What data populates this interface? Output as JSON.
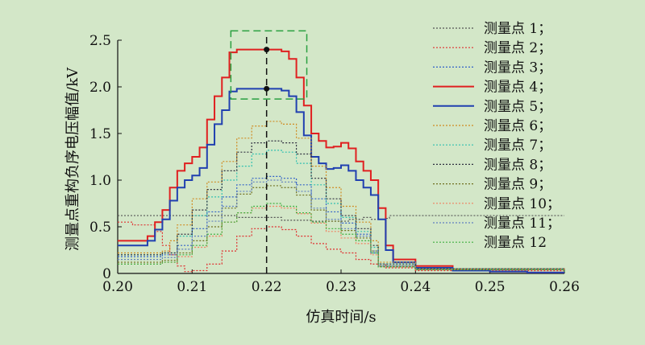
{
  "chart_data": {
    "type": "line",
    "xlabel": "仿真时间/s",
    "ylabel": "测量点重构负序电压幅值/kV",
    "xlim": [
      0.2,
      0.26
    ],
    "ylim": [
      0,
      2.5
    ],
    "xticks": [
      "0.20",
      "0.21",
      "0.22",
      "0.23",
      "0.24",
      "0.25",
      "0.26"
    ],
    "yticks": [
      "0",
      "0.5",
      "1.0",
      "1.5",
      "2.0",
      "2.5"
    ],
    "grid": false,
    "legend_position": "right",
    "marker_x": 0.22,
    "markers": [
      {
        "x": 0.22,
        "y": 2.4
      },
      {
        "x": 0.22,
        "y": 1.98
      }
    ],
    "highlight_box": {
      "x": [
        0.2152,
        0.2254
      ],
      "y": [
        1.87,
        2.6
      ]
    },
    "series": [
      {
        "name": "测量点 1；",
        "color": "#555555",
        "dash": "dot",
        "x": [
          0.2,
          0.206,
          0.216,
          0.222,
          0.226,
          0.229,
          0.231,
          0.233,
          0.234,
          0.236,
          0.2365,
          0.26
        ],
        "y": [
          0.62,
          0.62,
          0.6,
          0.57,
          0.56,
          0.56,
          0.58,
          0.6,
          0.58,
          0.59,
          0.62,
          0.62
        ]
      },
      {
        "name": "测量点 2；",
        "color": "#e03030",
        "dash": "dot",
        "x": [
          0.2,
          0.202,
          0.205,
          0.206,
          0.207,
          0.208,
          0.209,
          0.21,
          0.212,
          0.214,
          0.216,
          0.218,
          0.22,
          0.222,
          0.224,
          0.226,
          0.228,
          0.23,
          0.232,
          0.234,
          0.236,
          0.24,
          0.26
        ],
        "y": [
          0.55,
          0.52,
          0.45,
          0.3,
          0.2,
          0.08,
          0.02,
          0.03,
          0.1,
          0.24,
          0.4,
          0.48,
          0.5,
          0.47,
          0.4,
          0.32,
          0.26,
          0.22,
          0.15,
          0.1,
          0.06,
          0.03,
          0.02
        ]
      },
      {
        "name": "测量点 3；",
        "color": "#3060c8",
        "dash": "dot",
        "x": [
          0.2,
          0.206,
          0.208,
          0.21,
          0.212,
          0.214,
          0.216,
          0.218,
          0.22,
          0.222,
          0.224,
          0.226,
          0.228,
          0.23,
          0.232,
          0.234,
          0.235,
          0.24,
          0.26
        ],
        "y": [
          0.18,
          0.2,
          0.3,
          0.48,
          0.66,
          0.82,
          0.95,
          1.02,
          1.04,
          1.02,
          0.95,
          0.8,
          0.66,
          0.54,
          0.42,
          0.22,
          0.08,
          0.05,
          0.02
        ]
      },
      {
        "name": "测量点 4；",
        "color": "#e02020",
        "dash": "solid",
        "width": 2,
        "x": [
          0.2,
          0.202,
          0.204,
          0.205,
          0.206,
          0.207,
          0.208,
          0.209,
          0.21,
          0.211,
          0.212,
          0.213,
          0.214,
          0.215,
          0.216,
          0.217,
          0.218,
          0.22,
          0.221,
          0.222,
          0.223,
          0.224,
          0.225,
          0.226,
          0.227,
          0.228,
          0.229,
          0.23,
          0.231,
          0.232,
          0.233,
          0.234,
          0.235,
          0.236,
          0.237,
          0.24,
          0.245,
          0.25,
          0.255,
          0.26
        ],
        "y": [
          0.35,
          0.35,
          0.4,
          0.55,
          0.68,
          0.92,
          1.1,
          1.18,
          1.25,
          1.35,
          1.65,
          1.9,
          2.1,
          2.37,
          2.4,
          2.4,
          2.4,
          2.4,
          2.4,
          2.38,
          2.3,
          2.1,
          1.8,
          1.5,
          1.42,
          1.35,
          1.36,
          1.4,
          1.34,
          1.2,
          1.1,
          1.0,
          0.7,
          0.3,
          0.15,
          0.08,
          0.04,
          0.02,
          0.01,
          0.01
        ]
      },
      {
        "name": "测量点 5；",
        "color": "#2040b0",
        "dash": "solid",
        "width": 2,
        "x": [
          0.2,
          0.202,
          0.204,
          0.205,
          0.206,
          0.207,
          0.208,
          0.209,
          0.21,
          0.211,
          0.212,
          0.213,
          0.214,
          0.215,
          0.216,
          0.217,
          0.218,
          0.22,
          0.221,
          0.222,
          0.223,
          0.224,
          0.225,
          0.226,
          0.227,
          0.228,
          0.229,
          0.23,
          0.231,
          0.232,
          0.233,
          0.234,
          0.235,
          0.236,
          0.237,
          0.24,
          0.245,
          0.25,
          0.255,
          0.26
        ],
        "y": [
          0.3,
          0.3,
          0.35,
          0.47,
          0.58,
          0.78,
          0.92,
          1.0,
          1.05,
          1.13,
          1.38,
          1.6,
          1.75,
          1.95,
          1.98,
          1.98,
          1.98,
          1.98,
          1.98,
          1.96,
          1.9,
          1.73,
          1.48,
          1.25,
          1.18,
          1.12,
          1.13,
          1.16,
          1.1,
          1.0,
          0.92,
          0.84,
          0.58,
          0.25,
          0.12,
          0.06,
          0.03,
          0.02,
          0.01,
          0.01
        ]
      },
      {
        "name": "测量点 6；",
        "color": "#d08a20",
        "dash": "dot",
        "x": [
          0.2,
          0.206,
          0.207,
          0.208,
          0.21,
          0.212,
          0.214,
          0.216,
          0.218,
          0.22,
          0.221,
          0.222,
          0.224,
          0.226,
          0.228,
          0.23,
          0.232,
          0.234,
          0.235,
          0.24,
          0.26
        ],
        "y": [
          0.22,
          0.24,
          0.35,
          0.52,
          0.8,
          0.98,
          1.2,
          1.45,
          1.58,
          1.63,
          1.63,
          1.6,
          1.45,
          1.15,
          0.92,
          0.72,
          0.55,
          0.35,
          0.12,
          0.05,
          0.02
        ]
      },
      {
        "name": "测量点 7；",
        "color": "#30c0b0",
        "dash": "dot",
        "x": [
          0.2,
          0.206,
          0.208,
          0.21,
          0.212,
          0.214,
          0.216,
          0.218,
          0.22,
          0.222,
          0.224,
          0.226,
          0.228,
          0.23,
          0.232,
          0.234,
          0.235,
          0.24,
          0.26
        ],
        "y": [
          0.2,
          0.22,
          0.4,
          0.62,
          0.82,
          1.0,
          1.15,
          1.28,
          1.32,
          1.3,
          1.18,
          0.95,
          0.75,
          0.6,
          0.45,
          0.28,
          0.1,
          0.05,
          0.02
        ]
      },
      {
        "name": "测量点 8；",
        "color": "#303040",
        "dash": "dot",
        "x": [
          0.2,
          0.206,
          0.208,
          0.21,
          0.212,
          0.214,
          0.216,
          0.218,
          0.22,
          0.222,
          0.224,
          0.226,
          0.228,
          0.23,
          0.232,
          0.234,
          0.235,
          0.24,
          0.26
        ],
        "y": [
          0.2,
          0.22,
          0.42,
          0.68,
          0.9,
          1.1,
          1.3,
          1.4,
          1.42,
          1.4,
          1.28,
          1.02,
          0.8,
          0.62,
          0.48,
          0.3,
          0.1,
          0.05,
          0.02
        ]
      },
      {
        "name": "测量点 9；",
        "color": "#707020",
        "dash": "dot",
        "x": [
          0.2,
          0.206,
          0.208,
          0.21,
          0.212,
          0.214,
          0.216,
          0.218,
          0.22,
          0.222,
          0.224,
          0.226,
          0.228,
          0.23,
          0.232,
          0.234,
          0.235,
          0.24,
          0.26
        ],
        "y": [
          0.12,
          0.14,
          0.22,
          0.35,
          0.5,
          0.7,
          0.85,
          0.92,
          0.94,
          0.92,
          0.84,
          0.68,
          0.56,
          0.46,
          0.38,
          0.24,
          0.08,
          0.04,
          0.02
        ]
      },
      {
        "name": "测量点 10；",
        "color": "#f08060",
        "dash": "dot",
        "x": [
          0.2,
          0.206,
          0.208,
          0.21,
          0.212,
          0.214,
          0.216,
          0.218,
          0.22,
          0.222,
          0.224,
          0.226,
          0.228,
          0.23,
          0.232,
          0.234,
          0.235,
          0.24,
          0.26
        ],
        "y": [
          0.1,
          0.12,
          0.18,
          0.28,
          0.4,
          0.55,
          0.65,
          0.7,
          0.72,
          0.7,
          0.64,
          0.54,
          0.45,
          0.38,
          0.32,
          0.2,
          0.07,
          0.04,
          0.02
        ]
      },
      {
        "name": "测量点 11；",
        "color": "#6080c0",
        "dash": "dot",
        "x": [
          0.2,
          0.206,
          0.208,
          0.21,
          0.212,
          0.214,
          0.216,
          0.218,
          0.22,
          0.222,
          0.224,
          0.226,
          0.228,
          0.23,
          0.232,
          0.234,
          0.235,
          0.24,
          0.26
        ],
        "y": [
          0.15,
          0.17,
          0.26,
          0.4,
          0.56,
          0.72,
          0.88,
          0.98,
          1.0,
          0.98,
          0.88,
          0.7,
          0.58,
          0.48,
          0.4,
          0.24,
          0.08,
          0.04,
          0.02
        ]
      },
      {
        "name": "测量点 12",
        "color": "#40b040",
        "dash": "dot",
        "x": [
          0.2,
          0.206,
          0.208,
          0.21,
          0.212,
          0.214,
          0.216,
          0.218,
          0.22,
          0.222,
          0.224,
          0.226,
          0.228,
          0.23,
          0.232,
          0.234,
          0.235,
          0.24,
          0.26
        ],
        "y": [
          0.1,
          0.12,
          0.2,
          0.3,
          0.42,
          0.55,
          0.65,
          0.72,
          0.75,
          0.72,
          0.65,
          0.55,
          0.48,
          0.42,
          0.35,
          0.22,
          0.07,
          0.04,
          0.02
        ]
      }
    ]
  }
}
